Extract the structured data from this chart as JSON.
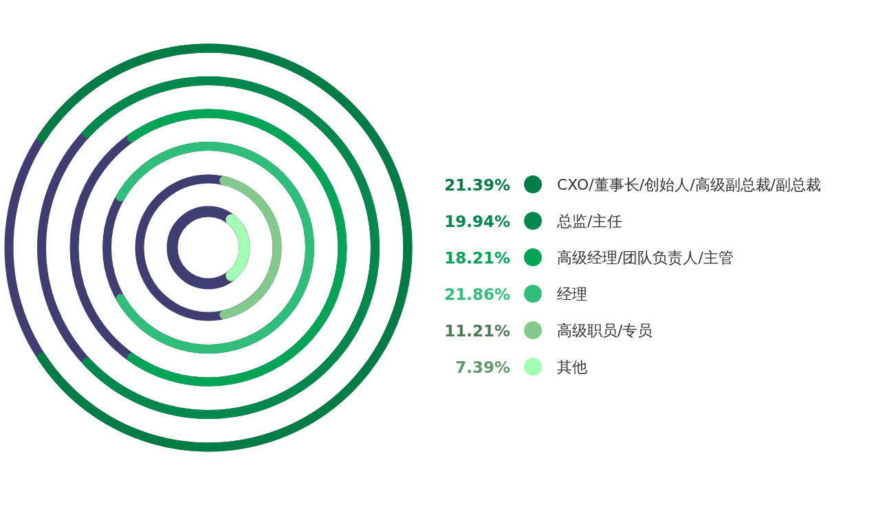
{
  "chart_data": {
    "type": "other",
    "categories": [
      "CXO/董事长/创始人/高级副总裁/副总裁",
      "总监/主任",
      "高级经理/团队负责人/主管",
      "经理",
      "高级职员/专员",
      "其他"
    ],
    "values": [
      21.39,
      19.94,
      18.21,
      21.86,
      11.21,
      7.39
    ],
    "value_labels": [
      "21.39%",
      "19.94%",
      "18.21%",
      "21.86%",
      "11.21%",
      "7.39%"
    ],
    "colors": [
      "#007c45",
      "#00884d",
      "#00a555",
      "#2fbf7a",
      "#83c98b",
      "#a2ffb4"
    ]
  }
}
